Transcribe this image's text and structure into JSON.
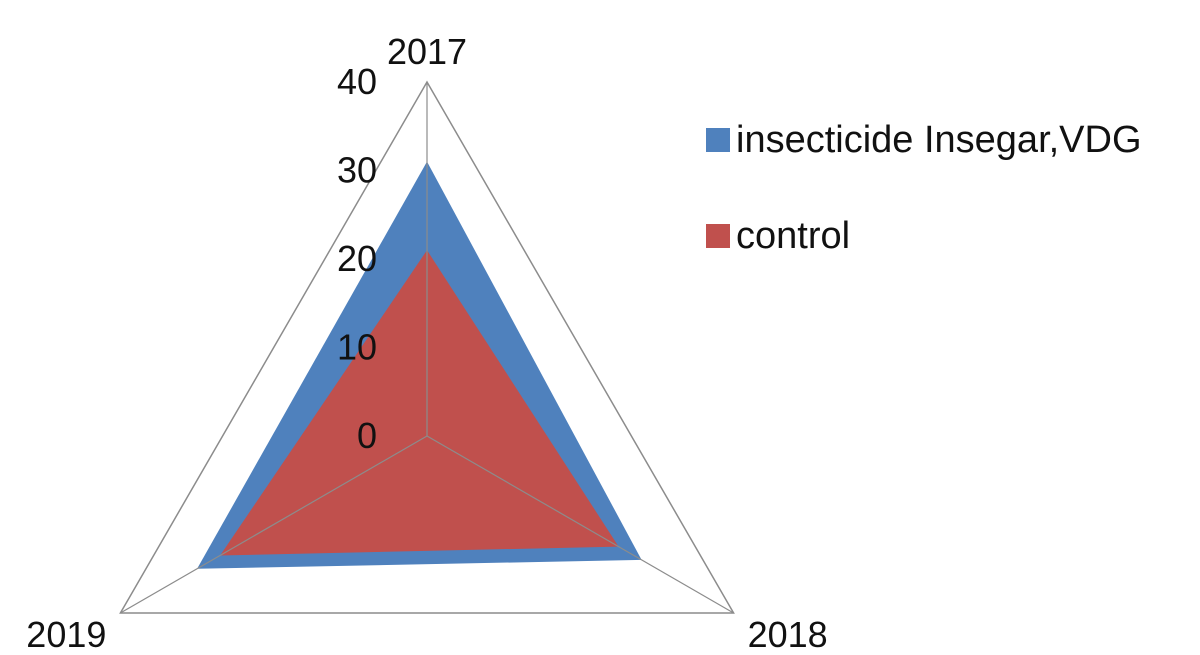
{
  "chart_data": {
    "type": "radar",
    "categories": [
      "2017",
      "2018",
      "2019"
    ],
    "rlim": [
      0,
      40
    ],
    "ticks": [
      "0",
      "10",
      "20",
      "30",
      "40"
    ],
    "series": [
      {
        "name": "insecticide Insegar,VDG",
        "color": "#4f81bd",
        "values": [
          31,
          28,
          30
        ]
      },
      {
        "name": "control",
        "color": "#c0504d",
        "values": [
          21,
          25,
          27
        ]
      }
    ],
    "legend_position": "right"
  }
}
